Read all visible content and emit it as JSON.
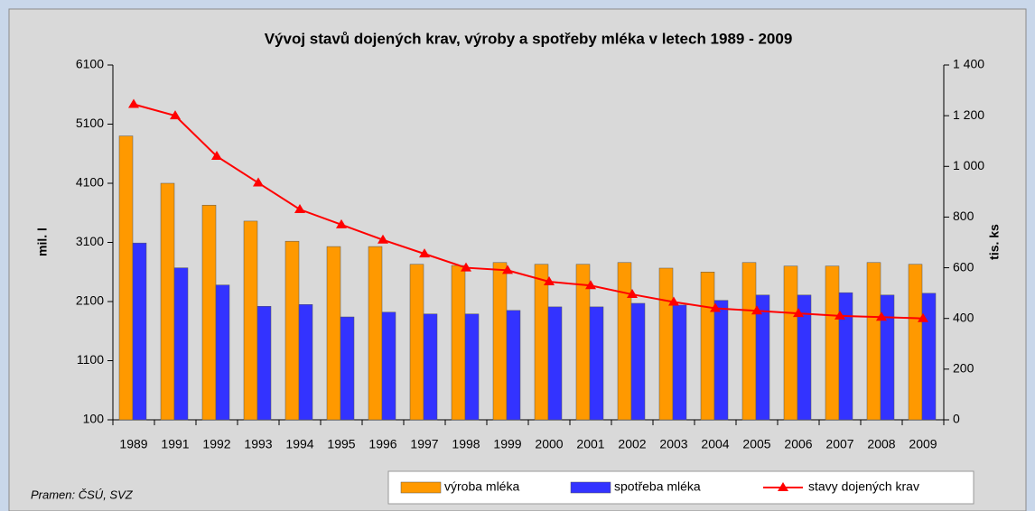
{
  "chart_data": {
    "type": "bar",
    "title": "Vývoj stavů dojených krav, výroby a spotřeby mléka v letech 1989 - 2009",
    "ylabel": "mil. l",
    "y2label": "tis. ks",
    "source": "Pramen: ČSÚ, SVZ",
    "categories": [
      "1989",
      "1991",
      "1992",
      "1993",
      "1994",
      "1995",
      "1996",
      "1997",
      "1998",
      "1999",
      "2000",
      "2001",
      "2002",
      "2003",
      "2004",
      "2005",
      "2006",
      "2007",
      "2008",
      "2009"
    ],
    "series": [
      {
        "name": "výroba mléka",
        "color": "#ff9900",
        "values": [
          4900,
          4100,
          3730,
          3460,
          3120,
          3030,
          3030,
          2730,
          2710,
          2760,
          2730,
          2730,
          2760,
          2665,
          2600,
          2760,
          2700,
          2700,
          2760,
          2730
        ]
      },
      {
        "name": "spotřeba mléka",
        "color": "#3333ff",
        "values": [
          3090,
          2670,
          2380,
          2020,
          2050,
          1840,
          1920,
          1890,
          1890,
          1950,
          2010,
          2010,
          2070,
          2040,
          2120,
          2210,
          2210,
          2250,
          2210,
          2240
        ]
      },
      {
        "name": "stavy dojených krav",
        "color": "#ff0000",
        "type": "line",
        "axis": "y2",
        "values": [
          1245,
          1200,
          1040,
          935,
          830,
          770,
          710,
          655,
          600,
          590,
          545,
          530,
          495,
          465,
          440,
          430,
          420,
          410,
          405,
          400
        ]
      }
    ],
    "ylim": [
      100,
      6100
    ],
    "yticks": [
      100,
      1100,
      2100,
      3100,
      4100,
      5100,
      6100
    ],
    "y2lim": [
      0,
      1400
    ],
    "y2ticks": [
      0,
      200,
      400,
      600,
      800,
      {
        "value": 1000,
        "label": "1 000"
      },
      {
        "value": 1200,
        "label": "1 200"
      },
      {
        "value": 1400,
        "label": "1 400"
      }
    ]
  }
}
